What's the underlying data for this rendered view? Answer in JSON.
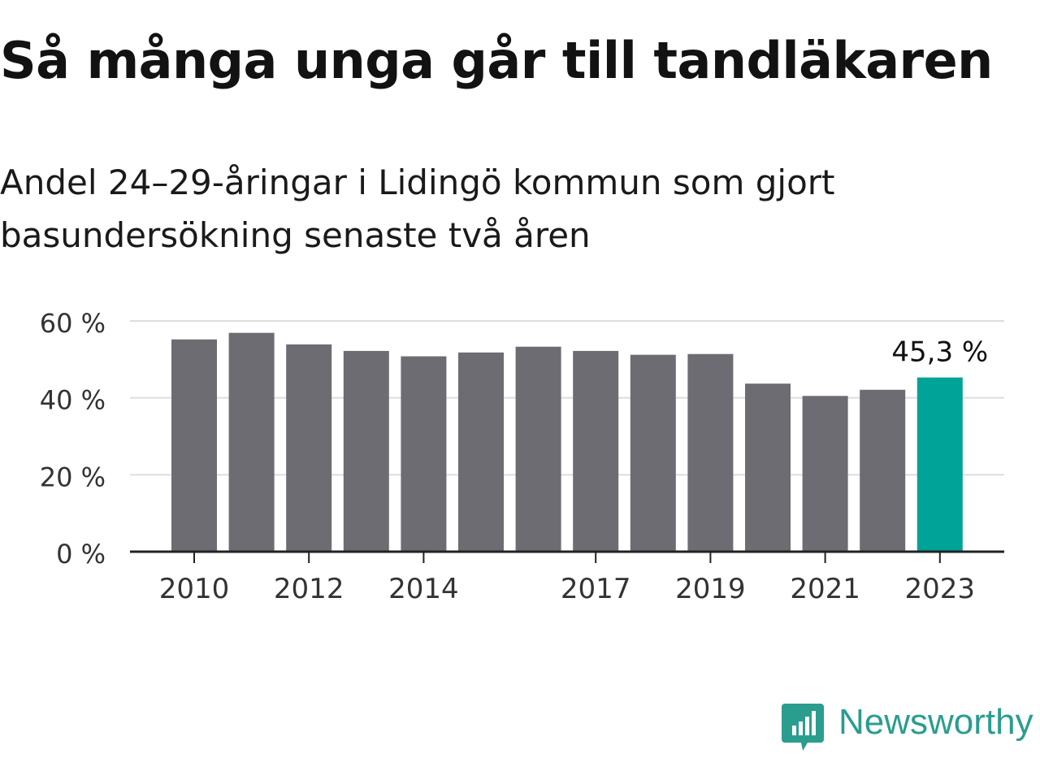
{
  "title": "Så många unga går till tandläkaren",
  "subtitle": "Andel 24–29-åringar i Lidingö kommun som gjort basundersökning senaste två åren",
  "brand": {
    "name": "Newsworthy",
    "color": "#2a9d8f"
  },
  "colors": {
    "bar": "#6d6c73",
    "highlight": "#00a398",
    "grid": "#dddddd",
    "axis": "#222222",
    "text": "#333333"
  },
  "chart_data": {
    "type": "bar",
    "categories": [
      "2010",
      "2011",
      "2012",
      "2013",
      "2014",
      "2015",
      "2016",
      "2017",
      "2018",
      "2019",
      "2020",
      "2021",
      "2022",
      "2023"
    ],
    "values": [
      55.2,
      56.9,
      53.9,
      52.2,
      50.8,
      51.8,
      53.3,
      52.2,
      51.2,
      51.4,
      43.7,
      40.5,
      42.1,
      45.3
    ],
    "xtick_labels": [
      "2010",
      "2012",
      "2014",
      "2017",
      "2019",
      "2021",
      "2023"
    ],
    "yticks": [
      0,
      20,
      40,
      60
    ],
    "ytick_labels": [
      "0 %",
      "20 %",
      "40 %",
      "60 %"
    ],
    "ylim": [
      0,
      60
    ],
    "highlight_category": "2023",
    "data_label": "45,3 %",
    "grid": true
  }
}
